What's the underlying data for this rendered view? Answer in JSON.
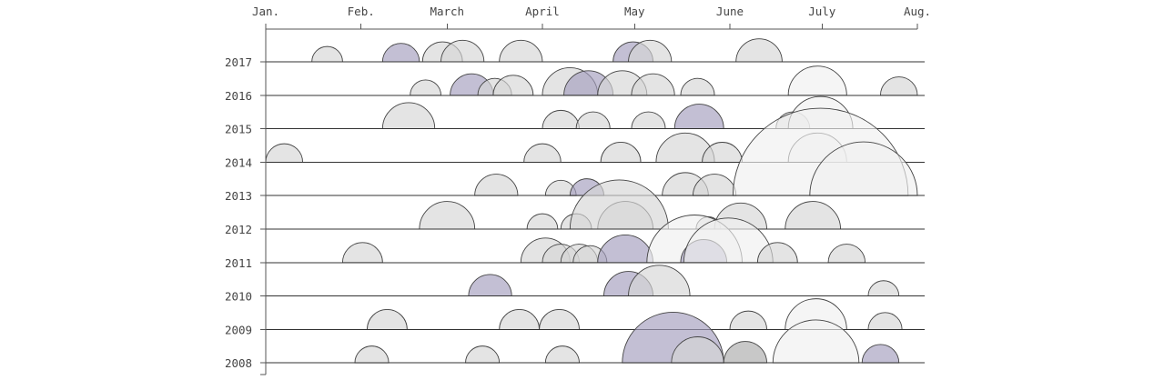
{
  "chart_data": {
    "type": "semicircle-timeline",
    "x_axis": {
      "ticks": [
        {
          "label": "Jan.",
          "day": 0
        },
        {
          "label": "Feb.",
          "day": 31
        },
        {
          "label": "March",
          "day": 59
        },
        {
          "label": "April",
          "day": 90
        },
        {
          "label": "May",
          "day": 120
        },
        {
          "label": "June",
          "day": 151
        },
        {
          "label": "July",
          "day": 181
        },
        {
          "label": "Aug.",
          "day": 212
        }
      ],
      "range": [
        0,
        212
      ]
    },
    "rows": [
      {
        "year": "2017",
        "events": [
          {
            "start": 15,
            "end": 25,
            "group": "gray"
          },
          {
            "start": 38,
            "end": 50,
            "group": "purple"
          },
          {
            "start": 51,
            "end": 64,
            "group": "gray"
          },
          {
            "start": 57,
            "end": 71,
            "group": "gray"
          },
          {
            "start": 76,
            "end": 90,
            "group": "gray"
          },
          {
            "start": 113,
            "end": 126,
            "group": "purple"
          },
          {
            "start": 118,
            "end": 132,
            "group": "gray"
          },
          {
            "start": 153,
            "end": 168,
            "group": "gray"
          }
        ]
      },
      {
        "year": "2016",
        "events": [
          {
            "start": 47,
            "end": 57,
            "group": "gray"
          },
          {
            "start": 60,
            "end": 74,
            "group": "purple"
          },
          {
            "start": 69,
            "end": 80,
            "group": "gray"
          },
          {
            "start": 74,
            "end": 87,
            "group": "gray"
          },
          {
            "start": 90,
            "end": 108,
            "group": "gray"
          },
          {
            "start": 97,
            "end": 113,
            "group": "purple"
          },
          {
            "start": 108,
            "end": 124,
            "group": "gray"
          },
          {
            "start": 119,
            "end": 133,
            "group": "gray"
          },
          {
            "start": 135,
            "end": 146,
            "group": "gray"
          },
          {
            "start": 170,
            "end": 189,
            "group": "white"
          },
          {
            "start": 200,
            "end": 212,
            "group": "gray"
          }
        ]
      },
      {
        "year": "2015",
        "events": [
          {
            "start": 38,
            "end": 55,
            "group": "gray"
          },
          {
            "start": 90,
            "end": 102,
            "group": "gray"
          },
          {
            "start": 101,
            "end": 112,
            "group": "gray"
          },
          {
            "start": 119,
            "end": 130,
            "group": "gray"
          },
          {
            "start": 133,
            "end": 149,
            "group": "purple"
          },
          {
            "start": 166,
            "end": 177,
            "group": "gray"
          },
          {
            "start": 170,
            "end": 191,
            "group": "white"
          }
        ]
      },
      {
        "year": "2014",
        "events": [
          {
            "start": 0,
            "end": 12,
            "group": "gray"
          },
          {
            "start": 84,
            "end": 96,
            "group": "gray"
          },
          {
            "start": 109,
            "end": 122,
            "group": "gray"
          },
          {
            "start": 127,
            "end": 146,
            "group": "gray"
          },
          {
            "start": 142,
            "end": 155,
            "group": "gray"
          },
          {
            "start": 170,
            "end": 189,
            "group": "white"
          }
        ]
      },
      {
        "year": "2013",
        "events": [
          {
            "start": 68,
            "end": 82,
            "group": "gray"
          },
          {
            "start": 91,
            "end": 101,
            "group": "gray"
          },
          {
            "start": 99,
            "end": 110,
            "group": "purple"
          },
          {
            "start": 129,
            "end": 144,
            "group": "gray"
          },
          {
            "start": 139,
            "end": 153,
            "group": "gray"
          },
          {
            "start": 152,
            "end": 209,
            "group": "white"
          },
          {
            "start": 177,
            "end": 212,
            "group": "white"
          }
        ]
      },
      {
        "year": "2012",
        "events": [
          {
            "start": 50,
            "end": 68,
            "group": "gray"
          },
          {
            "start": 85,
            "end": 95,
            "group": "gray"
          },
          {
            "start": 96,
            "end": 106,
            "group": "gray"
          },
          {
            "start": 108,
            "end": 126,
            "group": "gray"
          },
          {
            "start": 99,
            "end": 131,
            "group": "gray"
          },
          {
            "start": 140,
            "end": 148,
            "group": "gray"
          },
          {
            "start": 146,
            "end": 163,
            "group": "gray"
          },
          {
            "start": 169,
            "end": 187,
            "group": "gray"
          }
        ]
      },
      {
        "year": "2011",
        "events": [
          {
            "start": 25,
            "end": 38,
            "group": "gray"
          },
          {
            "start": 83,
            "end": 99,
            "group": "gray"
          },
          {
            "start": 90,
            "end": 102,
            "group": "gray"
          },
          {
            "start": 96,
            "end": 108,
            "group": "gray"
          },
          {
            "start": 100,
            "end": 111,
            "group": "gray"
          },
          {
            "start": 108,
            "end": 126,
            "group": "purple"
          },
          {
            "start": 124,
            "end": 155,
            "group": "white"
          },
          {
            "start": 135,
            "end": 150,
            "group": "purple"
          },
          {
            "start": 136,
            "end": 165,
            "group": "white"
          },
          {
            "start": 160,
            "end": 173,
            "group": "gray"
          },
          {
            "start": 183,
            "end": 195,
            "group": "gray"
          }
        ]
      },
      {
        "year": "2010",
        "events": [
          {
            "start": 66,
            "end": 80,
            "group": "purple"
          },
          {
            "start": 110,
            "end": 126,
            "group": "purple"
          },
          {
            "start": 118,
            "end": 138,
            "group": "gray"
          },
          {
            "start": 196,
            "end": 206,
            "group": "gray"
          }
        ]
      },
      {
        "year": "2009",
        "events": [
          {
            "start": 33,
            "end": 46,
            "group": "gray"
          },
          {
            "start": 76,
            "end": 89,
            "group": "gray"
          },
          {
            "start": 89,
            "end": 102,
            "group": "gray"
          },
          {
            "start": 151,
            "end": 163,
            "group": "gray"
          },
          {
            "start": 169,
            "end": 189,
            "group": "white"
          },
          {
            "start": 196,
            "end": 207,
            "group": "gray"
          }
        ]
      },
      {
        "year": "2008",
        "events": [
          {
            "start": 29,
            "end": 40,
            "group": "gray"
          },
          {
            "start": 65,
            "end": 76,
            "group": "gray"
          },
          {
            "start": 91,
            "end": 102,
            "group": "gray"
          },
          {
            "start": 116,
            "end": 149,
            "group": "purple"
          },
          {
            "start": 132,
            "end": 149,
            "group": "gray"
          },
          {
            "start": 149,
            "end": 163,
            "group": "darkgray"
          },
          {
            "start": 165,
            "end": 193,
            "group": "white"
          },
          {
            "start": 194,
            "end": 206,
            "group": "purple"
          }
        ]
      }
    ],
    "colors": {
      "gray": "#d6d6d6",
      "purple": "#a39cbd",
      "white": "#efefef",
      "darkgray": "#ababab"
    },
    "opacity": 0.65
  }
}
